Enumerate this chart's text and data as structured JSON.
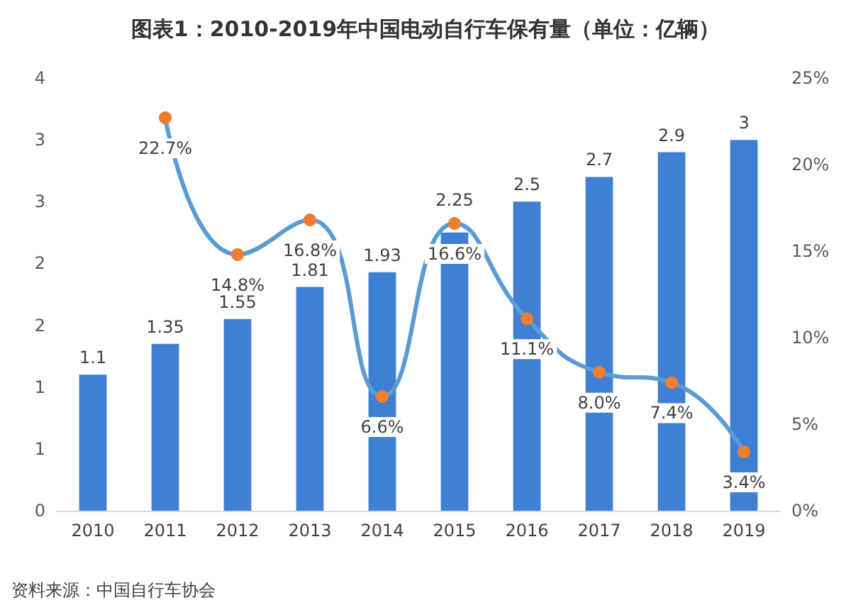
{
  "chart_data": {
    "type": "bar",
    "title": "图表1：2010-2019年中国电动自行车保有量（单位：亿辆）",
    "categories": [
      "2010",
      "2011",
      "2012",
      "2013",
      "2014",
      "2015",
      "2016",
      "2017",
      "2018",
      "2019"
    ],
    "series": [
      {
        "color": "#3f7fd4",
        "values": [
          1.1,
          1.35,
          1.55,
          1.81,
          1.93,
          2.25,
          2.5,
          2.7,
          2.9,
          3
        ],
        "value_labels": [
          "1.1",
          "1.35",
          "1.55",
          "1.81",
          "1.93",
          "2.25",
          "2.5",
          "2.7",
          "2.9",
          "3"
        ]
      },
      {
        "type": "line",
        "axis": "y2",
        "color": "#5b9bd5",
        "colors": [
          null,
          "#ed7d31",
          "#ed7d31",
          "#ed7d31",
          "#ed7d31",
          "#ed7d31",
          "#ed7d31",
          "#ed7d31",
          "#ed7d31",
          "#ed7d31"
        ],
        "marker": "circle",
        "values": [
          null,
          22.7,
          14.8,
          16.8,
          6.6,
          16.6,
          11.1,
          8.0,
          7.4,
          3.4
        ],
        "value_labels": [
          null,
          "22.7%",
          "14.8%",
          "16.8%",
          "6.6%",
          "16.6%",
          "11.1%",
          "8.0%",
          "7.4%",
          "3.4%"
        ]
      }
    ],
    "ylim": [
      0,
      3.5
    ],
    "yticks": [
      {
        "value": 0,
        "label": "0"
      },
      {
        "value": 0.5,
        "label": "1"
      },
      {
        "value": 1,
        "label": "1"
      },
      {
        "value": 1.5,
        "label": "2"
      },
      {
        "value": 2,
        "label": "2"
      },
      {
        "value": 2.5,
        "label": "3"
      },
      {
        "value": 3,
        "label": "3"
      },
      {
        "value": 3.5,
        "label": "4"
      }
    ],
    "y2lim": [
      0,
      25
    ],
    "y2ticks": [
      {
        "value": 0,
        "label": "0%"
      },
      {
        "value": 5,
        "label": "5%"
      },
      {
        "value": 10,
        "label": "10%"
      },
      {
        "value": 15,
        "label": "15%"
      },
      {
        "value": 20,
        "label": "20%"
      },
      {
        "value": 25,
        "label": "25%"
      }
    ],
    "grid": false,
    "annotations": [
      "资料来源：中国自行车协会"
    ]
  }
}
